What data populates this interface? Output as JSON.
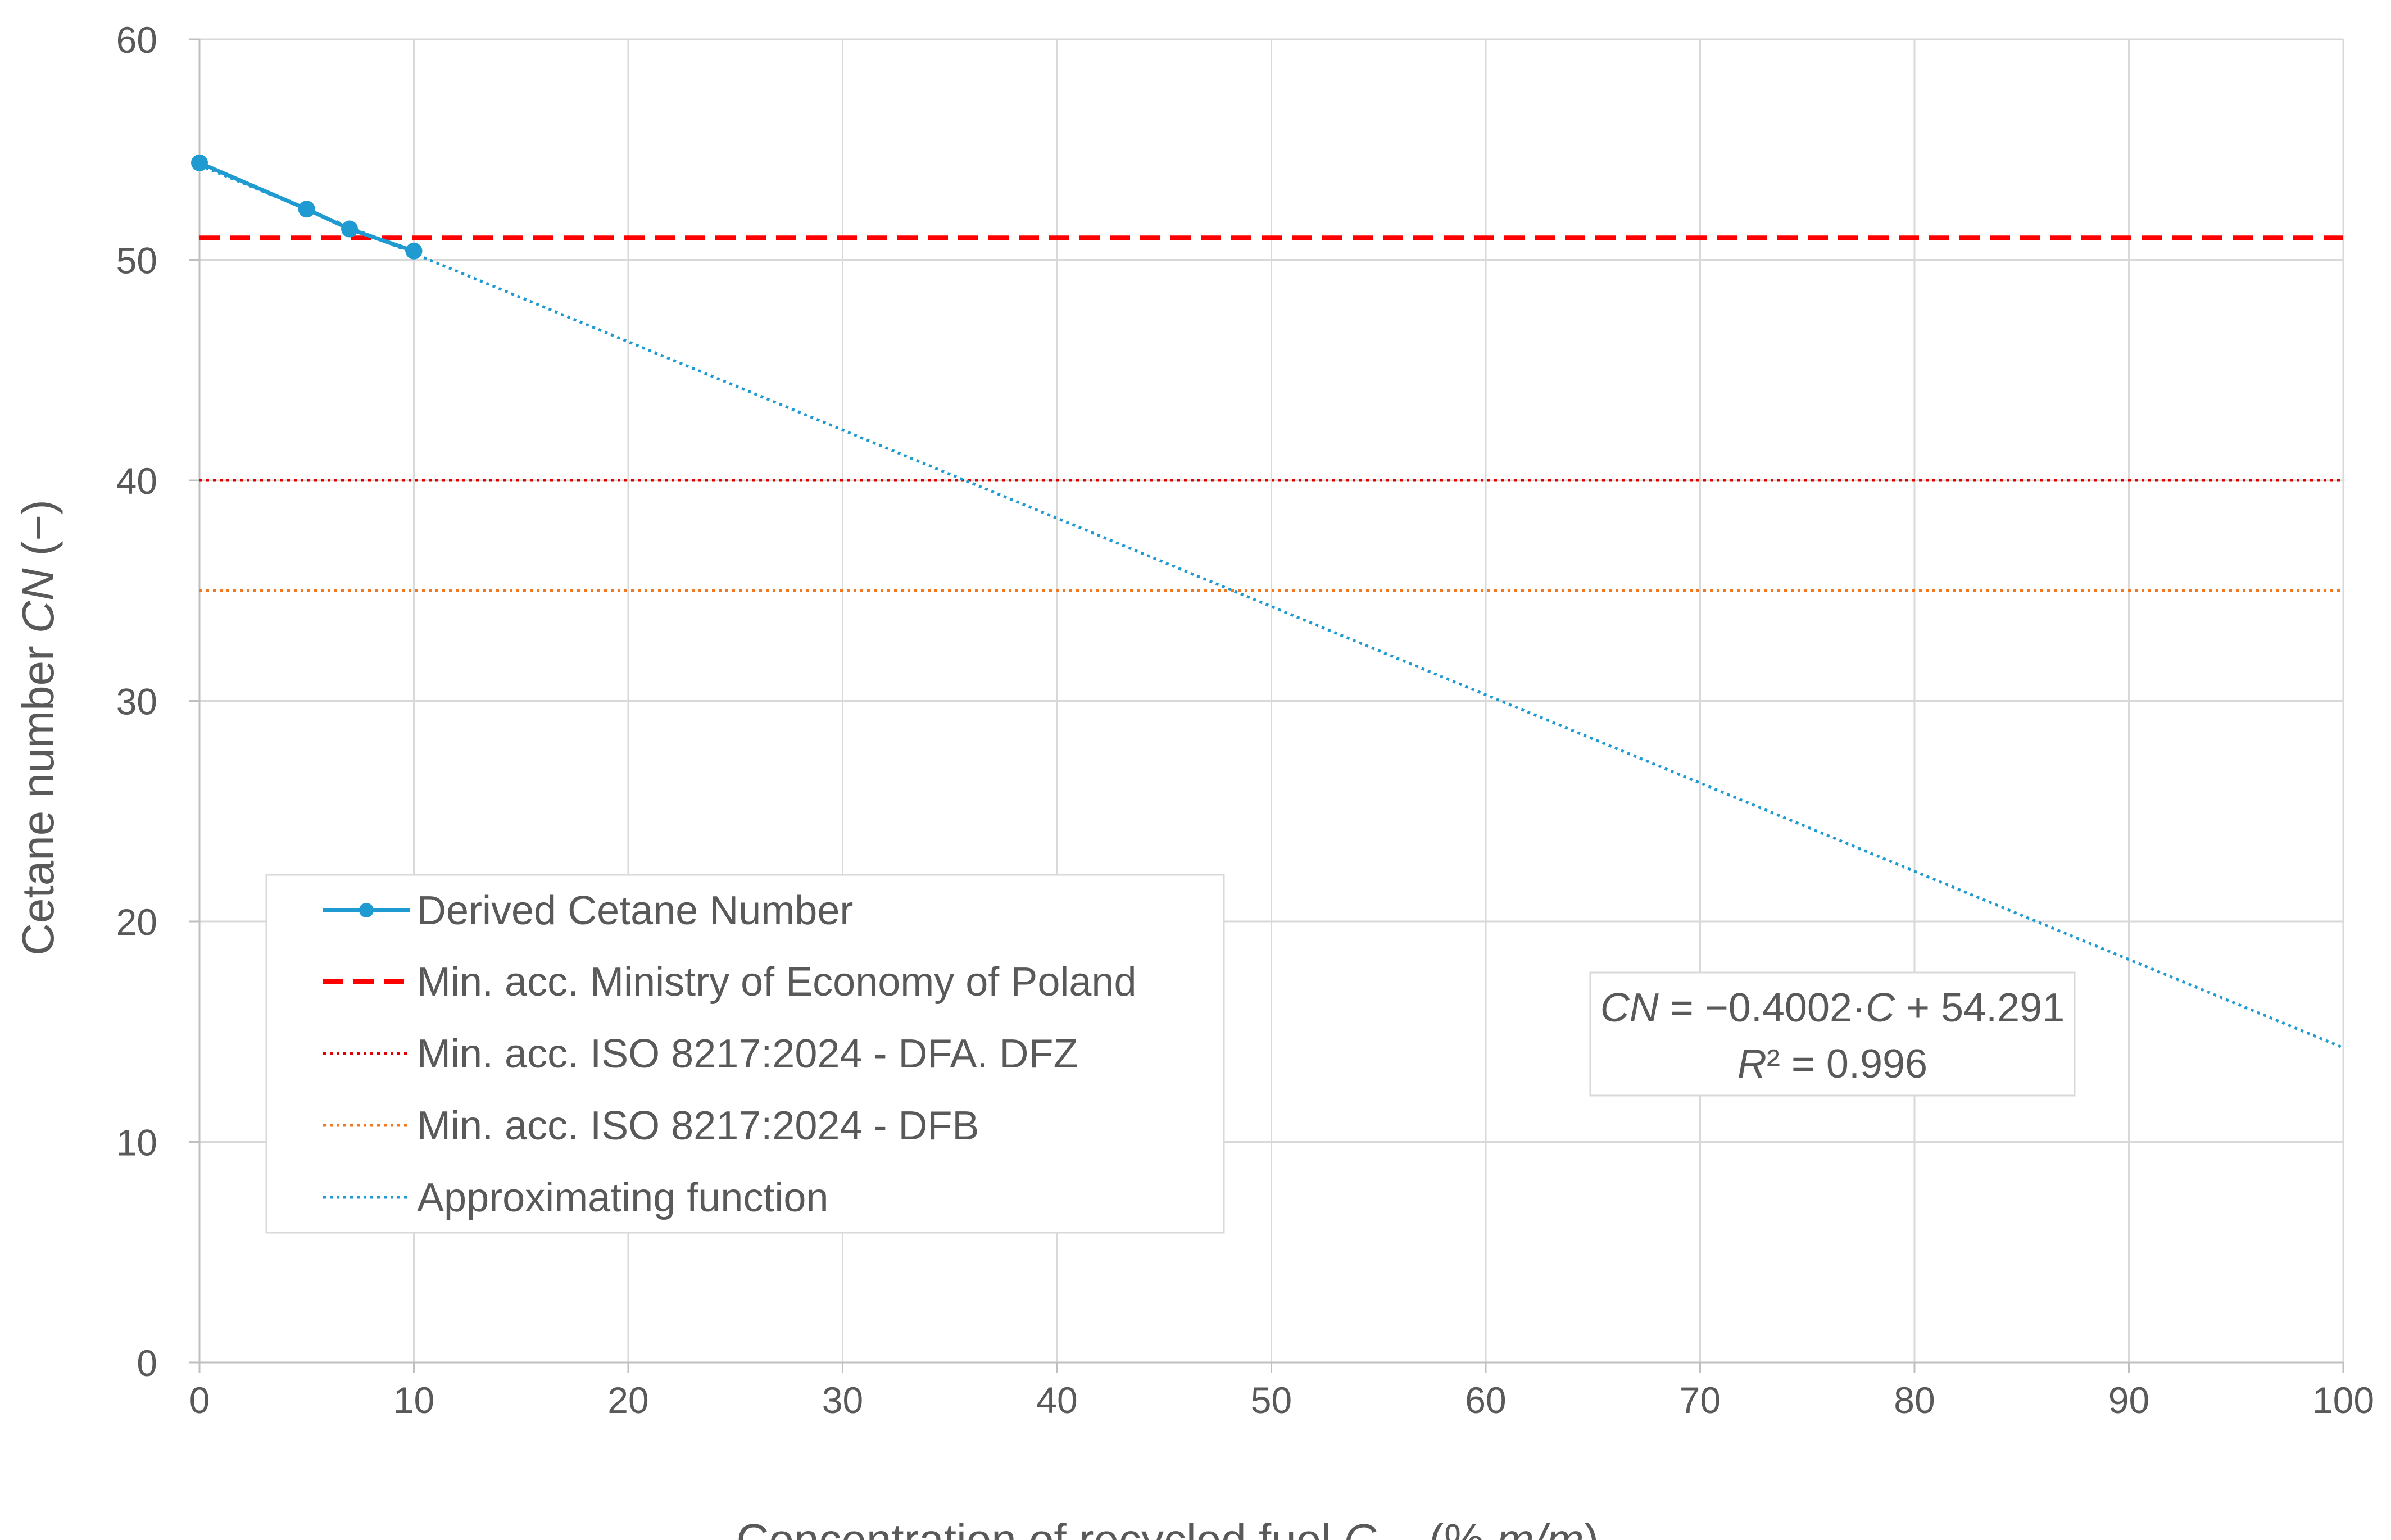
{
  "chart_data": {
    "type": "line",
    "xlabel": "Concentration of recycled fuel",
    "xlabel_var": "C",
    "xlabel_sub": "RF",
    "xlabel_open": " (% ",
    "xlabel_unit": "m/m",
    "xlabel_close": ")",
    "ylabel": "Cetane number ",
    "ylabel_var": "CN",
    "ylabel_unit": " (−)",
    "xlim": [
      0,
      100
    ],
    "ylim": [
      0,
      60
    ],
    "x_ticks": [
      "0",
      "10",
      "20",
      "30",
      "40",
      "50",
      "60",
      "70",
      "80",
      "90",
      "100"
    ],
    "y_ticks": [
      "0",
      "10",
      "20",
      "30",
      "40",
      "50",
      "60"
    ],
    "grid": true,
    "legend_position": "lower-left",
    "series": [
      {
        "name": "Derived Cetane Number",
        "kind": "line-markers",
        "color": "#1f9bd1",
        "x": [
          0,
          5,
          7,
          10
        ],
        "y": [
          54.4,
          52.3,
          51.4,
          50.4
        ]
      },
      {
        "name": "Min. acc. Ministry of Economy of Poland",
        "kind": "hline-dashed",
        "color": "#ff0000",
        "y": 51
      },
      {
        "name": "Min. acc. ISO 8217:2024 - DFA. DFZ",
        "kind": "hline-dotted",
        "color": "#e00000",
        "y": 40
      },
      {
        "name": "Min. acc. ISO 8217:2024 - DFB",
        "kind": "hline-dotted",
        "color": "#f07820",
        "y": 35
      },
      {
        "name": "Approximating function",
        "kind": "trendline-dotted",
        "color": "#1f9bd1",
        "slope": -0.4002,
        "intercept": 54.291
      }
    ],
    "equation": {
      "line1_var": "CN",
      "line1_mid": " = −0.4002·",
      "line1_var2": "C",
      "line1_end": " + 54.291",
      "line2_var": "R",
      "line2_end": "² = 0.996"
    }
  }
}
